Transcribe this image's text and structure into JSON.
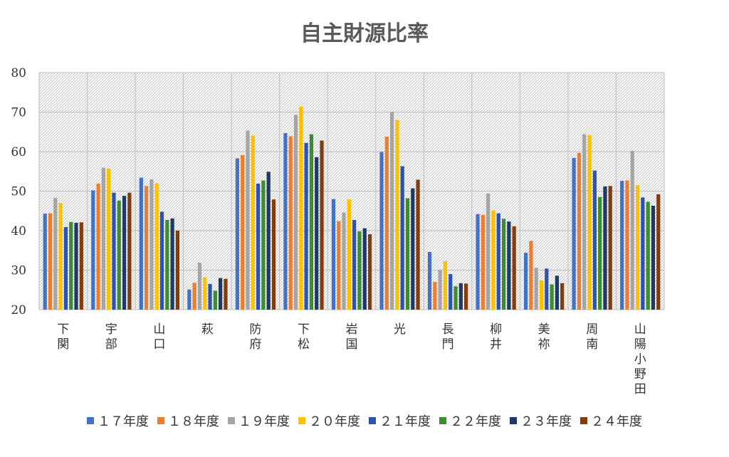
{
  "chart_data": {
    "type": "bar",
    "title": "自主財源比率",
    "categories": [
      "下関",
      "宇部",
      "山口",
      "萩",
      "防府",
      "下松",
      "岩国",
      "光",
      "長門",
      "柳井",
      "美祢",
      "周南",
      "山陽小野田"
    ],
    "ylim": [
      20,
      80
    ],
    "yticks": [
      20,
      30,
      40,
      50,
      60,
      70,
      80
    ],
    "grid": true,
    "legend_position": "bottom",
    "series": [
      {
        "name": "１７年度",
        "color": "#4472C4",
        "values": [
          44.3,
          50.2,
          53.4,
          25.1,
          58.3,
          64.7,
          48.0,
          59.9,
          34.6,
          44.2,
          34.4,
          58.4,
          52.6
        ]
      },
      {
        "name": "１８年度",
        "color": "#ED7D31",
        "values": [
          44.4,
          51.9,
          51.3,
          26.8,
          59.1,
          63.9,
          42.4,
          63.8,
          27.0,
          44.0,
          37.4,
          59.7,
          52.7
        ]
      },
      {
        "name": "１９年度",
        "color": "#A5A5A5",
        "values": [
          48.3,
          55.9,
          53.0,
          31.9,
          65.3,
          69.3,
          44.6,
          70.1,
          30.1,
          49.4,
          30.6,
          64.4,
          60.2
        ]
      },
      {
        "name": "２０年度",
        "color": "#FFC000",
        "values": [
          47.0,
          55.7,
          52.0,
          28.2,
          64.1,
          71.4,
          47.9,
          68.0,
          32.3,
          45.1,
          27.4,
          64.2,
          51.5
        ]
      },
      {
        "name": "２１年度",
        "color": "#2E52B0",
        "values": [
          40.9,
          49.6,
          44.8,
          26.5,
          51.9,
          62.2,
          42.7,
          56.3,
          29.0,
          44.4,
          30.4,
          55.2,
          48.4
        ]
      },
      {
        "name": "２２年度",
        "color": "#3C8D2F",
        "values": [
          42.2,
          47.6,
          42.7,
          24.8,
          52.7,
          64.4,
          39.8,
          48.2,
          25.9,
          43.0,
          26.4,
          48.5,
          47.3
        ]
      },
      {
        "name": "２３年度",
        "color": "#1F3864",
        "values": [
          42.0,
          48.8,
          43.1,
          28.0,
          54.9,
          58.6,
          40.6,
          50.7,
          26.7,
          42.3,
          28.6,
          51.2,
          46.3
        ]
      },
      {
        "name": "２４年度",
        "color": "#843C0C",
        "values": [
          42.1,
          49.6,
          40.0,
          27.8,
          47.9,
          62.8,
          39.1,
          52.9,
          26.6,
          41.1,
          26.7,
          51.3,
          49.2
        ]
      }
    ]
  }
}
